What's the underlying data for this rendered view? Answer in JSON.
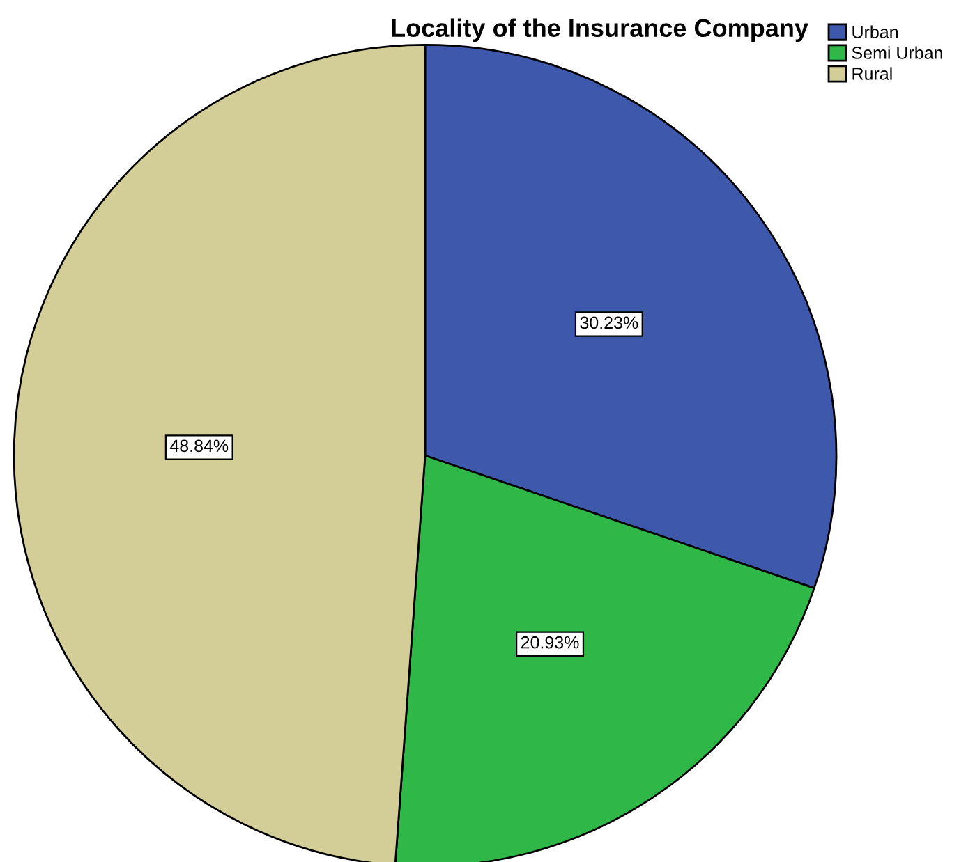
{
  "chart_data": {
    "type": "pie",
    "title": "Locality of the Insurance Company",
    "categories": [
      "Urban",
      "Semi Urban",
      "Rural"
    ],
    "values": [
      30.23,
      20.93,
      48.84
    ],
    "colors": [
      "#3e58ac",
      "#2fb847",
      "#d3ce98"
    ],
    "value_labels": [
      "30.23%",
      "20.93%",
      "48.84%"
    ],
    "legend": "top right"
  }
}
